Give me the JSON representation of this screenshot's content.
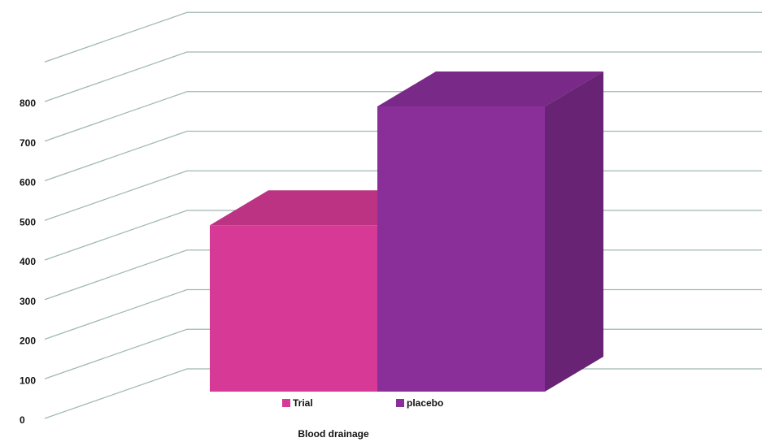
{
  "chart_data": {
    "type": "bar3d",
    "categories": [
      "Blood drainage"
    ],
    "series": [
      {
        "name": "Trial",
        "color": "#d63a96",
        "values": [
          420
        ]
      },
      {
        "name": "placebo",
        "color": "#8a2f9a",
        "values": [
          720
        ]
      }
    ],
    "ylim": [
      0,
      900
    ],
    "yticks": [
      0,
      100,
      200,
      300,
      400,
      500,
      600,
      700,
      800
    ],
    "grid": true,
    "legend": "bottom"
  }
}
